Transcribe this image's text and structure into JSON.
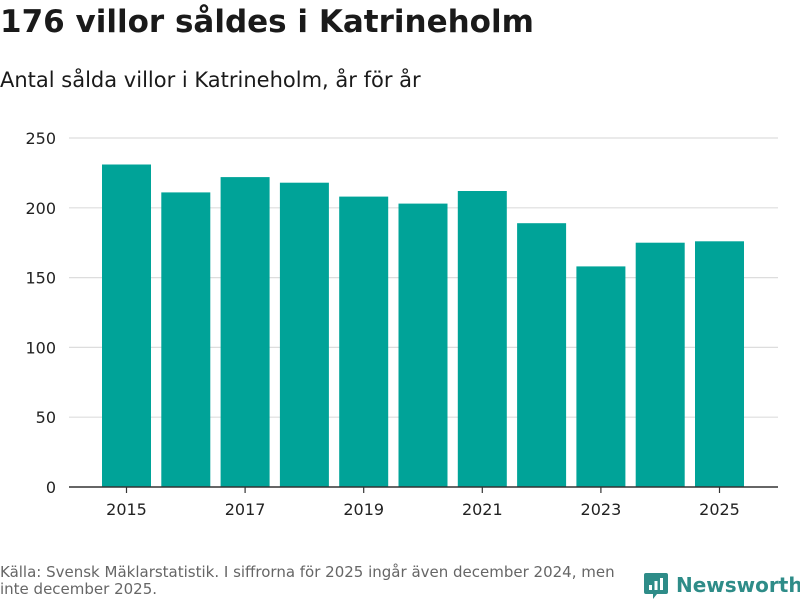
{
  "title": "176 villor såldes i Katrineholm",
  "subtitle": "Antal sålda villor i Katrineholm, år för år",
  "source": "Källa: Svensk Mäklarstatistik. I siffrorna för 2025 ingår även december 2024, men inte december 2025.",
  "brand": {
    "name": "Newsworthy",
    "icon": "newsworthy-logo-icon"
  },
  "colors": {
    "bar": "#00a398",
    "grid": "#dddddd",
    "axis": "#333333",
    "brand": "#2e8c88"
  },
  "chart_data": {
    "type": "bar",
    "title": "Antal sålda villor i Katrineholm, år för år",
    "xlabel": "",
    "ylabel": "",
    "categories": [
      "2015",
      "2016",
      "2017",
      "2018",
      "2019",
      "2020",
      "2021",
      "2022",
      "2023",
      "2024",
      "2025"
    ],
    "values": [
      231,
      211,
      222,
      218,
      208,
      203,
      212,
      189,
      158,
      175,
      176
    ],
    "x_tick_labels": [
      "2015",
      "2017",
      "2019",
      "2021",
      "2023",
      "2025"
    ],
    "y_ticks": [
      0,
      50,
      100,
      150,
      200,
      250
    ],
    "ylim": [
      0,
      250
    ],
    "grid": true,
    "legend": "none"
  }
}
